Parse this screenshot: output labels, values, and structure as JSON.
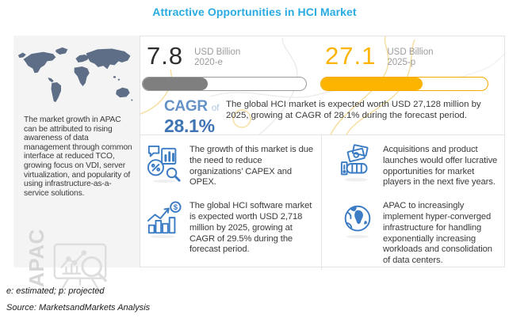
{
  "title": "Attractive Opportunities in HCI Market",
  "sidebar": {
    "region_label": "APAC",
    "description": "The market growth in APAC can be attributed to rising awareness of data management through common interface at reduced TCO, growing focus on VDI, server virtualization, and popularity of using infrastructure-as-a-service solutions.",
    "icons": [
      "world-map",
      "analysis-board-icon"
    ]
  },
  "stats": {
    "current": {
      "value": "7.8",
      "unit": "USD Billion",
      "period": "2020-e",
      "bar_fill_pct": 40,
      "bar_color": "#7F7F7F"
    },
    "forecast": {
      "value": "27.1",
      "unit": "USD Billion",
      "period": "2025-p",
      "bar_fill_pct": 61,
      "bar_color": "#FCB400"
    }
  },
  "cagr": {
    "label": "CAGR",
    "of": "of",
    "value": "28.1%",
    "note": "The global HCI market is expected worth USD 27,128 million by 2025, growing at CAGR of 28.1% during the forecast period."
  },
  "highlights": [
    {
      "icon": "market-analysis-icon",
      "text": "The growth of this market is due the need to reduce organizations’ CAPEX and OPEX."
    },
    {
      "icon": "money-hand-icon",
      "text": "Acquisitions and product launches would offer lucrative opportunities for market players in the next five years."
    },
    {
      "icon": "growth-chart-icon",
      "text": "The global HCI software market is expected worth USD 2,718 million by 2025, growing at CAGR of 29.5% during the forecast period."
    },
    {
      "icon": "globe-icon",
      "text": "APAC to increasingly implement hyper-converged infrastructure for handling exponentially increasing workloads and consolidation of data centers."
    }
  ],
  "footer": {
    "note": "e: estimated; p: projected",
    "source": "Source: MarketsandMarkets Analysis"
  },
  "colors": {
    "title_blue": "#29ABE2",
    "accent_orange": "#FCB400",
    "accent_gray": "#7F7F7F",
    "cagr_blue": "#3E73B4",
    "icon_blue": "#3B7CC4",
    "map_slate": "#5D6E86",
    "sidebar_bg": "#F4F4F4"
  }
}
